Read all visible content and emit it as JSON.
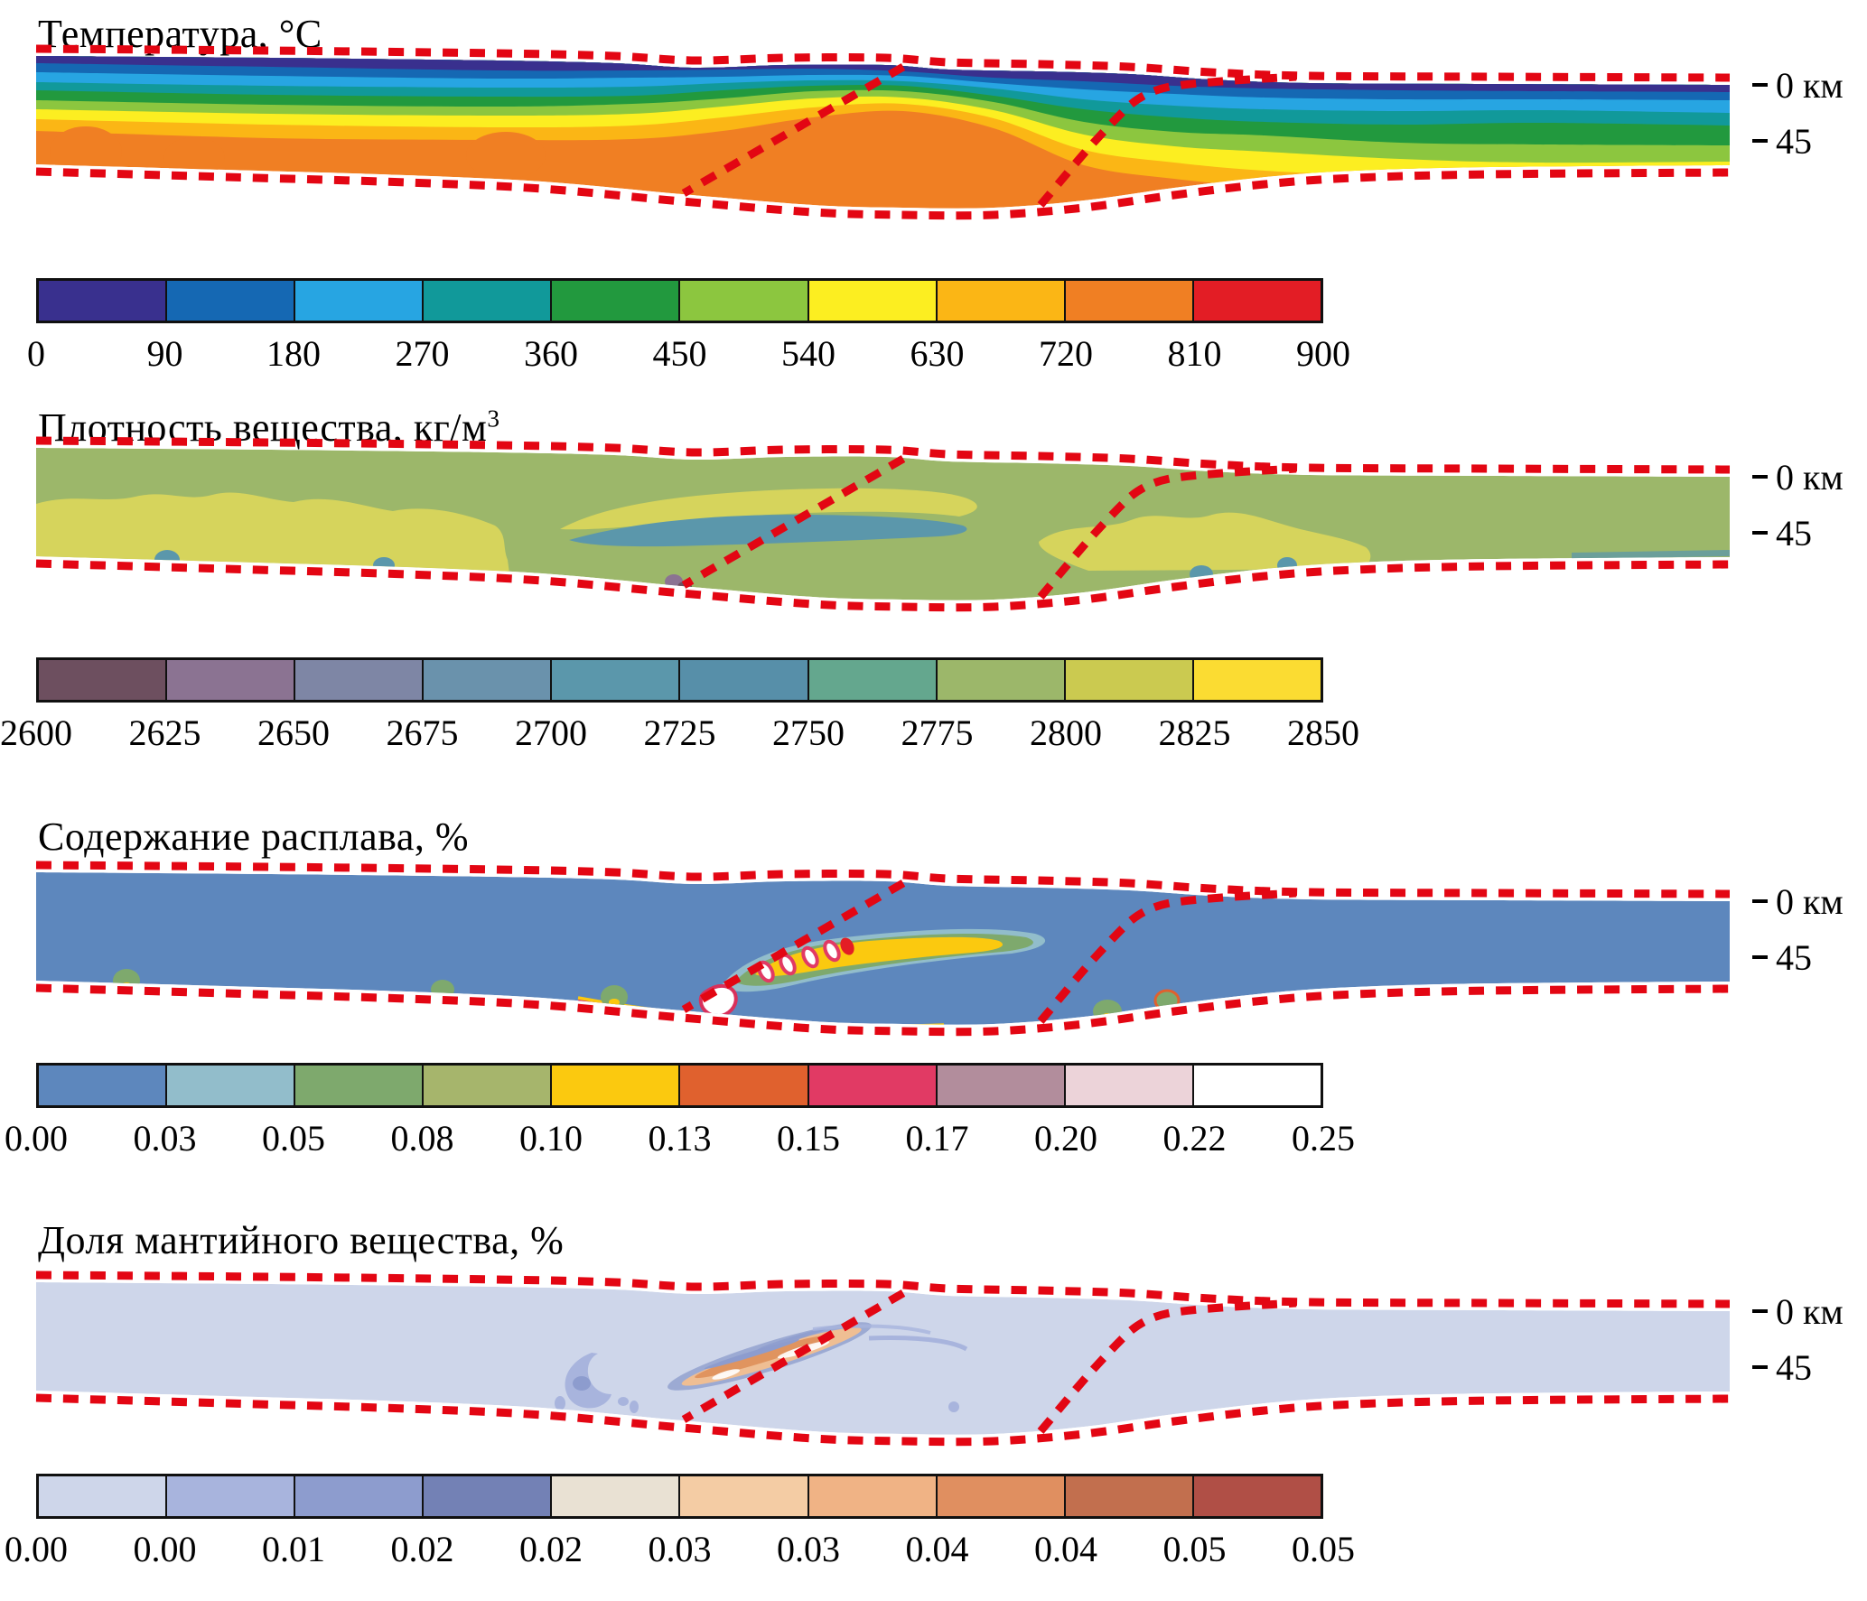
{
  "style": {
    "boundary_dash_color": "#E30613",
    "background": "#FFFFFF"
  },
  "chart_data": [
    {
      "panel": "temperature",
      "type": "filled_contour_cross_section",
      "title": "Температура, °C",
      "title_sup": "",
      "depth_axis": {
        "ticks": [
          "0 км",
          "45"
        ]
      },
      "colorbar": {
        "range": [
          0,
          900
        ],
        "tick_labels": [
          "0",
          "90",
          "180",
          "270",
          "360",
          "450",
          "540",
          "630",
          "720",
          "810",
          "900"
        ],
        "segment_colors": [
          "#39308E",
          "#1568B3",
          "#27A5E2",
          "#11999A",
          "#22993E",
          "#8CC63F",
          "#FCEE21",
          "#FBB615",
          "#F07F23",
          "#E31D25"
        ]
      }
    },
    {
      "panel": "density",
      "type": "filled_contour_cross_section",
      "title": "Плотность вещества, кг/м",
      "title_sup": "3",
      "depth_axis": {
        "ticks": [
          "0 км",
          "45"
        ]
      },
      "colorbar": {
        "range": [
          2600,
          2850
        ],
        "tick_labels": [
          "2600",
          "2625",
          "2650",
          "2675",
          "2700",
          "2725",
          "2750",
          "2775",
          "2800",
          "2825",
          "2850"
        ],
        "segment_colors": [
          "#6D4F5F",
          "#8B7392",
          "#7E86A5",
          "#6A92AC",
          "#5B97AB",
          "#578FA9",
          "#64A78E",
          "#9CB76A",
          "#CBCA50",
          "#FBDC32"
        ]
      }
    },
    {
      "panel": "melt_content",
      "type": "filled_contour_cross_section",
      "title": "Содержание расплава, %",
      "title_sup": "",
      "depth_axis": {
        "ticks": [
          "0 км",
          "45"
        ]
      },
      "colorbar": {
        "range": [
          0,
          0.25
        ],
        "tick_labels": [
          "0.00",
          "0.03",
          "0.05",
          "0.08",
          "0.10",
          "0.13",
          "0.15",
          "0.17",
          "0.20",
          "0.22",
          "0.25"
        ],
        "segment_colors": [
          "#5D87BD",
          "#92BDCB",
          "#7EA96D",
          "#A6B56C",
          "#FBC90F",
          "#E0612E",
          "#E13A64",
          "#B28D9C",
          "#ECD3D9",
          "#FFFFFF"
        ]
      }
    },
    {
      "panel": "mantle_fraction",
      "type": "filled_contour_cross_section",
      "title": "Доля мантийного вещества, %",
      "title_sup": "",
      "depth_axis": {
        "ticks": [
          "0 км",
          "45"
        ]
      },
      "colorbar": {
        "range": [
          0,
          0.05
        ],
        "tick_labels": [
          "0.00",
          "0.00",
          "0.01",
          "0.02",
          "0.02",
          "0.03",
          "0.03",
          "0.04",
          "0.04",
          "0.05",
          "0.05"
        ],
        "segment_colors": [
          "#CED6EA",
          "#A8B4DD",
          "#8D9CCE",
          "#7381B5",
          "#E9E1D3",
          "#F4CCA4",
          "#F0B385",
          "#E08F60",
          "#C26F4E",
          "#B04F46"
        ]
      }
    }
  ]
}
